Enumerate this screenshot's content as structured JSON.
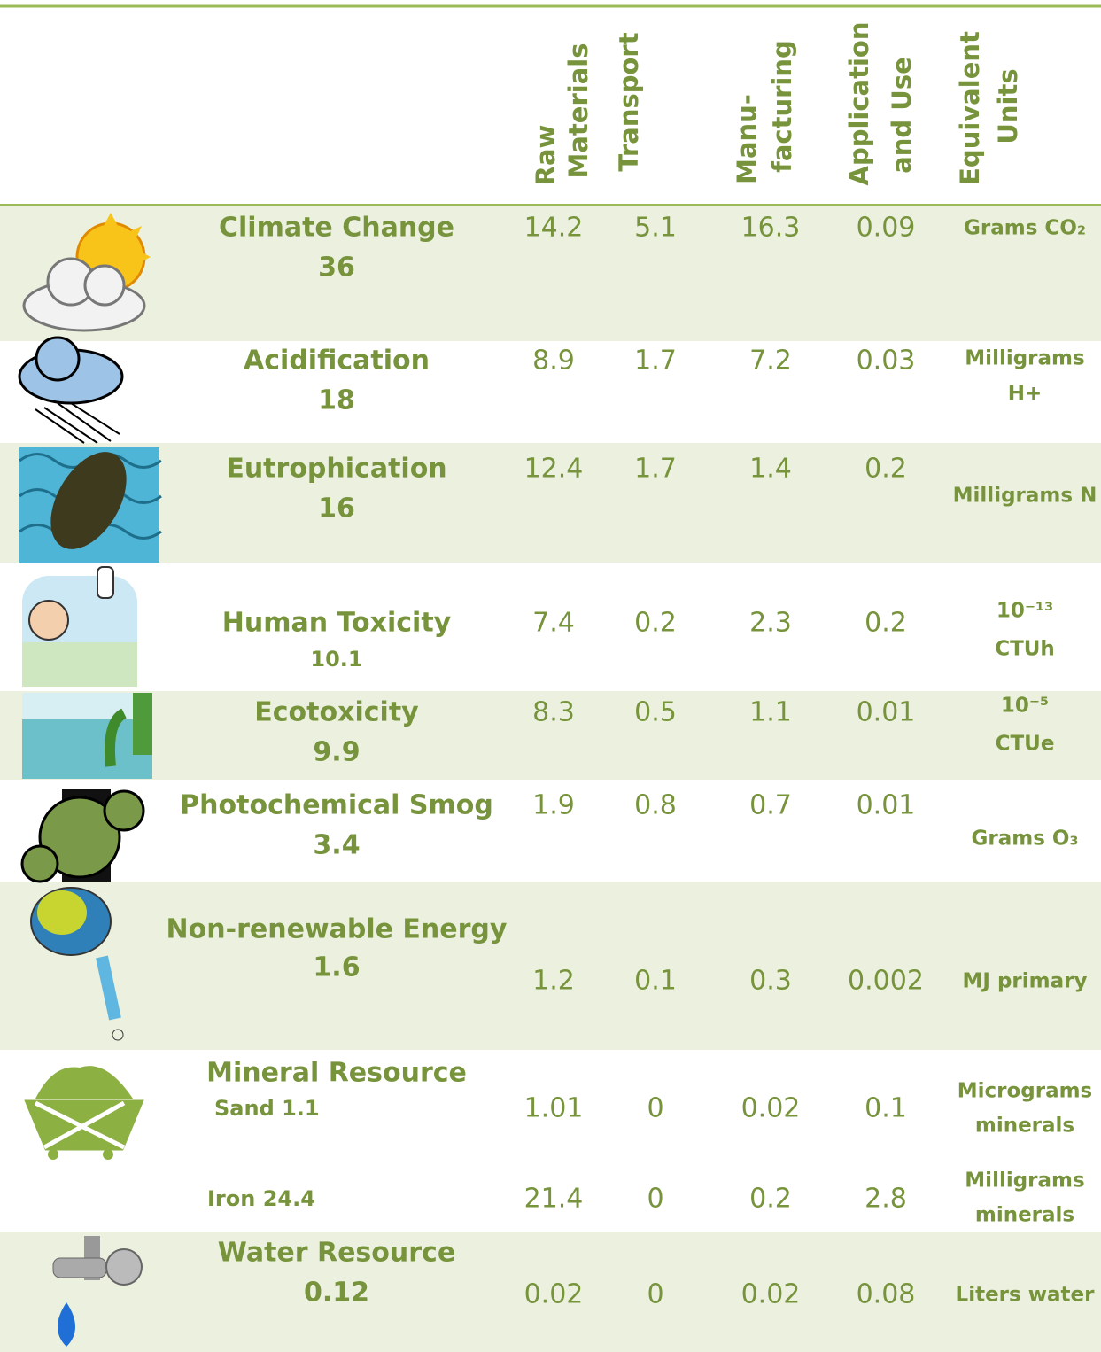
{
  "table": {
    "columns": [
      [
        "Raw",
        "Materials"
      ],
      [
        "Transport"
      ],
      [
        "Manu-",
        "facturing"
      ],
      [
        "Application",
        "and Use"
      ],
      [
        "Equivalent",
        "Units"
      ]
    ],
    "rows": [
      {
        "name": "Climate Change",
        "total": 36,
        "values": [
          14.2,
          5.1,
          16.3,
          0.09
        ],
        "units": [
          "Grams CO₂"
        ]
      },
      {
        "name": "Acidification",
        "total": 18,
        "values": [
          8.9,
          1.7,
          7.2,
          0.03
        ],
        "units": [
          "Milligrams",
          "H+"
        ]
      },
      {
        "name": "Eutrophication",
        "total": 16,
        "values": [
          12.4,
          1.7,
          1.4,
          0.2
        ],
        "units": [
          "Milligrams N"
        ]
      },
      {
        "name": "Human Toxicity",
        "total": 10.1,
        "values": [
          7.4,
          0.2,
          2.3,
          0.2
        ],
        "units": [
          "10⁻¹³",
          "CTUh"
        ]
      },
      {
        "name": "Ecotoxicity",
        "total": 9.9,
        "values": [
          8.3,
          0.5,
          1.1,
          0.01
        ],
        "units": [
          "10⁻⁵",
          "CTUe"
        ]
      },
      {
        "name": "Photochemical Smog",
        "total": 3.4,
        "values": [
          1.9,
          0.8,
          0.7,
          0.01
        ],
        "units": [
          "Grams O₃"
        ]
      },
      {
        "name": "Non-renewable Energy",
        "total": 1.6,
        "values": [
          1.2,
          0.1,
          0.3,
          0.002
        ],
        "units": [
          "MJ primary"
        ]
      },
      {
        "name": "Mineral Resource",
        "subrows": [
          {
            "label": "Sand 1.1",
            "values": [
              1.01,
              0,
              0.02,
              0.1
            ],
            "units": [
              "Micrograms",
              "minerals"
            ]
          },
          {
            "label": "Iron 24.4",
            "values": [
              21.4,
              0,
              0.2,
              2.8
            ],
            "units": [
              "Milligrams",
              "minerals"
            ]
          }
        ]
      },
      {
        "name": "Water Resource",
        "total": 0.12,
        "values": [
          0.02,
          0,
          0.02,
          0.08
        ],
        "units": [
          "Liters water"
        ]
      }
    ]
  }
}
